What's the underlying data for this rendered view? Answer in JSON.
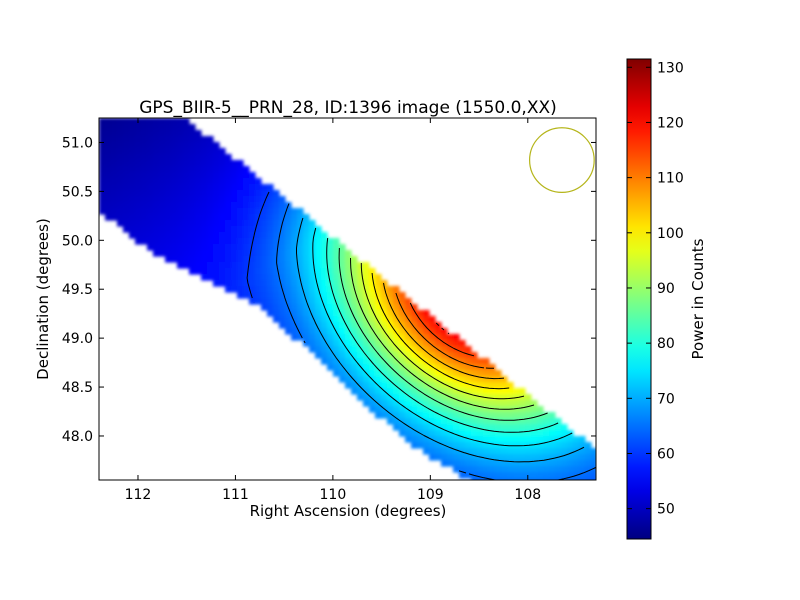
{
  "chart_data": {
    "type": "heatmap",
    "title": "GPS_BIIR-5__PRN_28, ID:1396 image (1550.0,XX)",
    "xlabel": "Right Ascension (degrees)",
    "ylabel": "Declination (degrees)",
    "xlim": [
      112.4,
      107.3
    ],
    "ylim": [
      47.55,
      51.25
    ],
    "x_ticks": [
      {
        "value": 112,
        "label": "112"
      },
      {
        "value": 111,
        "label": "111"
      },
      {
        "value": 110,
        "label": "110"
      },
      {
        "value": 109,
        "label": "109"
      },
      {
        "value": 108,
        "label": "108"
      }
    ],
    "y_ticks": [
      {
        "value": 48.0,
        "label": "48.0"
      },
      {
        "value": 48.5,
        "label": "48.5"
      },
      {
        "value": 49.0,
        "label": "49.0"
      },
      {
        "value": 49.5,
        "label": "49.5"
      },
      {
        "value": 50.0,
        "label": "50.0"
      },
      {
        "value": 50.5,
        "label": "50.5"
      },
      {
        "value": 51.0,
        "label": "51.0"
      }
    ],
    "colorbar": {
      "label": "Power in Counts",
      "range": [
        44.5,
        131.5
      ],
      "colormap": "jet",
      "ticks": [
        {
          "value": 50,
          "label": "50"
        },
        {
          "value": 60,
          "label": "60"
        },
        {
          "value": 70,
          "label": "70"
        },
        {
          "value": 80,
          "label": "80"
        },
        {
          "value": 90,
          "label": "90"
        },
        {
          "value": 100,
          "label": "100"
        },
        {
          "value": 110,
          "label": "110"
        },
        {
          "value": 120,
          "label": "120"
        },
        {
          "value": 130,
          "label": "130"
        }
      ]
    },
    "peak": {
      "ra": 108.6,
      "dec": 49.45,
      "value": 131
    },
    "beam_circle": {
      "ra": 107.65,
      "dec": 50.82,
      "radius_deg": 0.33,
      "color": "#b5b51a"
    },
    "contour_color": "#000000"
  }
}
